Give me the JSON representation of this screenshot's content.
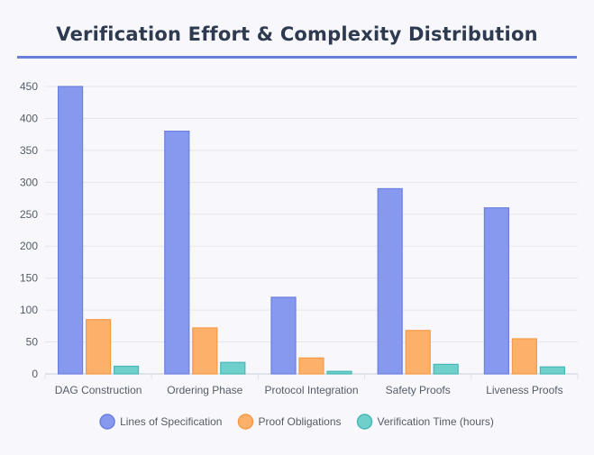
{
  "chart_data": {
    "type": "bar",
    "title": "Verification Effort & Complexity Distribution",
    "categories": [
      "DAG Construction",
      "Ordering Phase",
      "Protocol Integration",
      "Safety Proofs",
      "Liveness Proofs"
    ],
    "series": [
      {
        "name": "Lines of Specification",
        "values": [
          450,
          380,
          120,
          290,
          260
        ],
        "color": "#8799ee",
        "border": "#6a7fe0"
      },
      {
        "name": "Proof Obligations",
        "values": [
          85,
          72,
          25,
          68,
          55
        ],
        "color": "#fdb06a",
        "border": "#f59a45"
      },
      {
        "name": "Verification Time (hours)",
        "values": [
          12,
          18,
          4,
          15,
          11
        ],
        "color": "#6fcfcb",
        "border": "#48b8b3"
      }
    ],
    "yticks": [
      0,
      50,
      100,
      150,
      200,
      250,
      300,
      350,
      400,
      450
    ],
    "ylim": [
      0,
      450
    ],
    "grid": true,
    "legend_position": "bottom"
  }
}
